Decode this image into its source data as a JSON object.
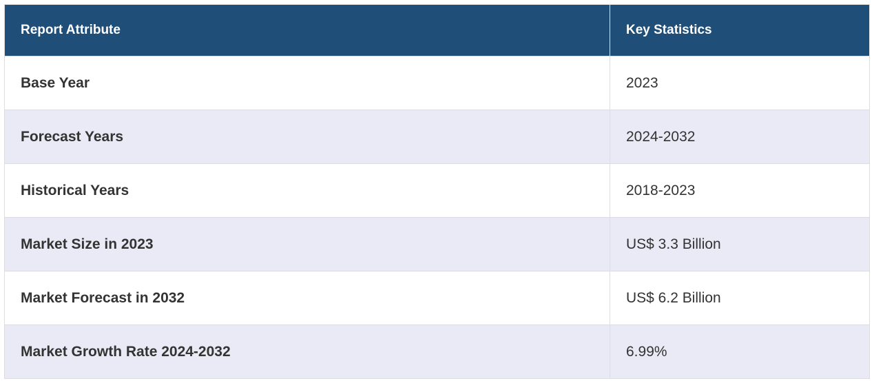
{
  "table": {
    "headers": [
      "Report Attribute",
      "Key Statistics"
    ],
    "rows": [
      {
        "attribute": "Base Year",
        "value": "2023"
      },
      {
        "attribute": "Forecast Years",
        "value": "2024-2032"
      },
      {
        "attribute": "Historical Years",
        "value": "2018-2023"
      },
      {
        "attribute": "Market Size in 2023",
        "value": "US$ 3.3 Billion"
      },
      {
        "attribute": "Market Forecast in 2032",
        "value": "US$ 6.2 Billion"
      },
      {
        "attribute": "Market Growth Rate 2024-2032",
        "value": "6.99%"
      }
    ],
    "colors": {
      "header_bg": "#1f4e79",
      "stripe_bg": "#e9eaf5"
    }
  }
}
